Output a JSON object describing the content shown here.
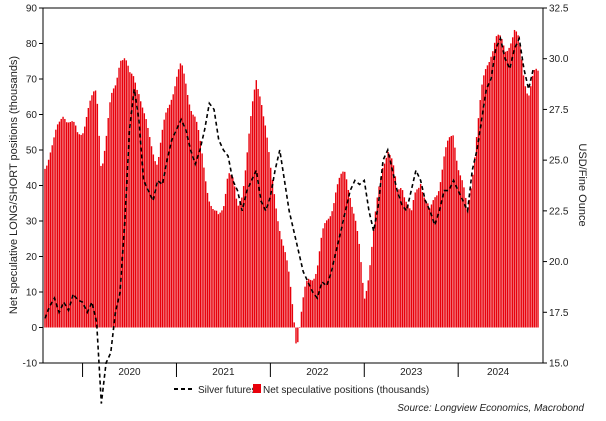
{
  "chart_data": {
    "type": "bar",
    "title": "",
    "xlabel": "",
    "ylabel": "Net speculative LONG/SHORT positions (thousands)",
    "y2label": "USD/Fine Ounce",
    "ylim": [
      -10,
      90
    ],
    "y2lim": [
      15,
      32.5
    ],
    "yticks": [
      -10,
      0,
      10,
      20,
      30,
      40,
      50,
      60,
      70,
      80,
      90
    ],
    "y2ticks": [
      "15.0",
      "17.5",
      "20.0",
      "22.5",
      "25.0",
      "27.5",
      "30.0",
      "32.5"
    ],
    "x_tick_labels": [
      "2020",
      "2021",
      "2022",
      "2023",
      "2024"
    ],
    "x_range": [
      2019.6,
      2024.85
    ],
    "colors": {
      "bars": "#e8000b",
      "line": "#000000",
      "axes": "#000000"
    },
    "legend_position": "bottom-center",
    "series": [
      {
        "name": "Net speculative positions (thousands)",
        "kind": "bar",
        "axis": "left",
        "points": [
          [
            2019.6,
            45
          ],
          [
            2019.65,
            50
          ],
          [
            2019.7,
            52
          ],
          [
            2019.75,
            55
          ],
          [
            2019.8,
            60
          ],
          [
            2019.85,
            58
          ],
          [
            2019.9,
            55
          ],
          [
            2019.95,
            52
          ],
          [
            2020.0,
            55
          ],
          [
            2020.05,
            60
          ],
          [
            2020.1,
            62
          ],
          [
            2020.15,
            65
          ],
          [
            2020.2,
            45
          ],
          [
            2020.25,
            52
          ],
          [
            2020.3,
            62
          ],
          [
            2020.35,
            68
          ],
          [
            2020.4,
            77
          ],
          [
            2020.45,
            75
          ],
          [
            2020.5,
            70
          ],
          [
            2020.55,
            72
          ],
          [
            2020.6,
            68
          ],
          [
            2020.65,
            60
          ],
          [
            2020.7,
            55
          ],
          [
            2020.75,
            52
          ],
          [
            2020.8,
            48
          ],
          [
            2020.85,
            55
          ],
          [
            2020.9,
            62
          ],
          [
            2020.95,
            68
          ],
          [
            2021.0,
            72
          ],
          [
            2021.05,
            74
          ],
          [
            2021.1,
            70
          ],
          [
            2021.15,
            65
          ],
          [
            2021.2,
            60
          ],
          [
            2021.25,
            52
          ],
          [
            2021.3,
            45
          ],
          [
            2021.35,
            38
          ],
          [
            2021.4,
            32
          ],
          [
            2021.45,
            30
          ],
          [
            2021.5,
            35
          ],
          [
            2021.55,
            45
          ],
          [
            2021.6,
            40
          ],
          [
            2021.65,
            32
          ],
          [
            2021.7,
            38
          ],
          [
            2021.75,
            48
          ],
          [
            2021.8,
            58
          ],
          [
            2021.85,
            68
          ],
          [
            2021.9,
            65
          ],
          [
            2021.95,
            55
          ],
          [
            2022.0,
            42
          ],
          [
            2022.05,
            35
          ],
          [
            2022.1,
            28
          ],
          [
            2022.15,
            20
          ],
          [
            2022.2,
            12
          ],
          [
            2022.25,
            3
          ],
          [
            2022.28,
            -5
          ],
          [
            2022.32,
            2
          ],
          [
            2022.36,
            8
          ],
          [
            2022.4,
            12
          ],
          [
            2022.45,
            15
          ],
          [
            2022.5,
            18
          ],
          [
            2022.55,
            25
          ],
          [
            2022.6,
            30
          ],
          [
            2022.65,
            35
          ],
          [
            2022.7,
            40
          ],
          [
            2022.75,
            42
          ],
          [
            2022.8,
            45
          ],
          [
            2022.85,
            40
          ],
          [
            2022.9,
            32
          ],
          [
            2022.95,
            22
          ],
          [
            2023.0,
            10
          ],
          [
            2023.05,
            18
          ],
          [
            2023.1,
            28
          ],
          [
            2023.15,
            38
          ],
          [
            2023.2,
            48
          ],
          [
            2023.25,
            52
          ],
          [
            2023.3,
            46
          ],
          [
            2023.35,
            38
          ],
          [
            2023.4,
            42
          ],
          [
            2023.45,
            36
          ],
          [
            2023.5,
            30
          ],
          [
            2023.55,
            38
          ],
          [
            2023.6,
            42
          ],
          [
            2023.65,
            35
          ],
          [
            2023.7,
            30
          ],
          [
            2023.75,
            36
          ],
          [
            2023.8,
            40
          ],
          [
            2023.85,
            46
          ],
          [
            2023.9,
            50
          ],
          [
            2023.95,
            54
          ],
          [
            2024.0,
            45
          ],
          [
            2024.05,
            38
          ],
          [
            2024.1,
            30
          ],
          [
            2024.15,
            42
          ],
          [
            2024.2,
            55
          ],
          [
            2024.25,
            65
          ],
          [
            2024.3,
            72
          ],
          [
            2024.35,
            78
          ],
          [
            2024.4,
            82
          ],
          [
            2024.45,
            80
          ],
          [
            2024.5,
            78
          ],
          [
            2024.55,
            82
          ],
          [
            2024.6,
            84
          ],
          [
            2024.65,
            80
          ],
          [
            2024.7,
            72
          ],
          [
            2024.75,
            68
          ],
          [
            2024.8,
            72
          ]
        ]
      },
      {
        "name": "Silver futures",
        "kind": "line",
        "axis": "right",
        "style": "dashed",
        "points": [
          [
            2019.6,
            17.2
          ],
          [
            2019.65,
            17.8
          ],
          [
            2019.7,
            18.2
          ],
          [
            2019.75,
            17.5
          ],
          [
            2019.8,
            18.0
          ],
          [
            2019.85,
            17.6
          ],
          [
            2019.9,
            18.4
          ],
          [
            2019.95,
            18.1
          ],
          [
            2020.0,
            18.0
          ],
          [
            2020.05,
            17.5
          ],
          [
            2020.1,
            18.0
          ],
          [
            2020.15,
            17.0
          ],
          [
            2020.2,
            13.0
          ],
          [
            2020.25,
            15.0
          ],
          [
            2020.3,
            15.5
          ],
          [
            2020.35,
            17.5
          ],
          [
            2020.4,
            18.5
          ],
          [
            2020.45,
            22.0
          ],
          [
            2020.5,
            26.5
          ],
          [
            2020.55,
            28.5
          ],
          [
            2020.6,
            27.0
          ],
          [
            2020.65,
            24.0
          ],
          [
            2020.7,
            23.5
          ],
          [
            2020.75,
            23.0
          ],
          [
            2020.8,
            24.0
          ],
          [
            2020.85,
            23.8
          ],
          [
            2020.9,
            25.0
          ],
          [
            2020.95,
            26.0
          ],
          [
            2021.0,
            26.5
          ],
          [
            2021.05,
            27.0
          ],
          [
            2021.1,
            26.5
          ],
          [
            2021.15,
            25.5
          ],
          [
            2021.2,
            24.8
          ],
          [
            2021.25,
            25.5
          ],
          [
            2021.3,
            26.5
          ],
          [
            2021.35,
            27.8
          ],
          [
            2021.4,
            27.5
          ],
          [
            2021.45,
            26.0
          ],
          [
            2021.5,
            25.5
          ],
          [
            2021.55,
            25.2
          ],
          [
            2021.6,
            24.0
          ],
          [
            2021.65,
            23.5
          ],
          [
            2021.7,
            22.5
          ],
          [
            2021.75,
            23.5
          ],
          [
            2021.8,
            24.0
          ],
          [
            2021.85,
            24.5
          ],
          [
            2021.9,
            23.0
          ],
          [
            2021.95,
            22.5
          ],
          [
            2022.0,
            23.2
          ],
          [
            2022.05,
            24.5
          ],
          [
            2022.1,
            25.5
          ],
          [
            2022.15,
            24.0
          ],
          [
            2022.2,
            22.5
          ],
          [
            2022.25,
            21.5
          ],
          [
            2022.3,
            20.5
          ],
          [
            2022.35,
            19.5
          ],
          [
            2022.4,
            19.0
          ],
          [
            2022.45,
            18.5
          ],
          [
            2022.5,
            18.2
          ],
          [
            2022.55,
            19.0
          ],
          [
            2022.6,
            18.8
          ],
          [
            2022.65,
            19.5
          ],
          [
            2022.7,
            20.5
          ],
          [
            2022.75,
            21.5
          ],
          [
            2022.8,
            22.5
          ],
          [
            2022.85,
            23.5
          ],
          [
            2022.9,
            24.0
          ],
          [
            2022.95,
            23.8
          ],
          [
            2023.0,
            24.0
          ],
          [
            2023.05,
            22.5
          ],
          [
            2023.1,
            21.5
          ],
          [
            2023.15,
            22.8
          ],
          [
            2023.2,
            25.0
          ],
          [
            2023.25,
            25.5
          ],
          [
            2023.3,
            24.5
          ],
          [
            2023.35,
            23.5
          ],
          [
            2023.4,
            22.8
          ],
          [
            2023.45,
            22.5
          ],
          [
            2023.5,
            23.5
          ],
          [
            2023.55,
            24.5
          ],
          [
            2023.6,
            24.0
          ],
          [
            2023.65,
            23.0
          ],
          [
            2023.7,
            22.5
          ],
          [
            2023.75,
            21.8
          ],
          [
            2023.8,
            22.5
          ],
          [
            2023.85,
            23.5
          ],
          [
            2023.9,
            23.5
          ],
          [
            2023.95,
            24.0
          ],
          [
            2024.0,
            23.5
          ],
          [
            2024.05,
            23.0
          ],
          [
            2024.1,
            22.5
          ],
          [
            2024.15,
            24.5
          ],
          [
            2024.2,
            25.5
          ],
          [
            2024.25,
            27.0
          ],
          [
            2024.3,
            28.5
          ],
          [
            2024.35,
            29.0
          ],
          [
            2024.4,
            30.5
          ],
          [
            2024.45,
            31.0
          ],
          [
            2024.5,
            30.0
          ],
          [
            2024.55,
            29.5
          ],
          [
            2024.6,
            30.5
          ],
          [
            2024.65,
            31.0
          ],
          [
            2024.7,
            29.5
          ],
          [
            2024.75,
            28.5
          ],
          [
            2024.8,
            29.5
          ]
        ]
      }
    ],
    "source": "Source: Longview Economics, Macrobond"
  }
}
